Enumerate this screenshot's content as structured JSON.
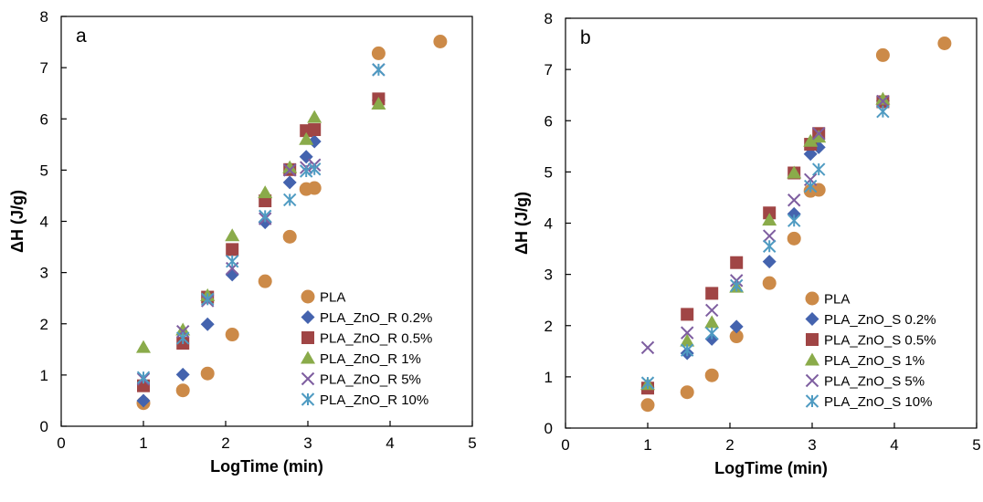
{
  "chart_data": [
    {
      "type": "scatter",
      "panel_label": "a",
      "xlabel": "LogTime (min)",
      "ylabel": "ΔH (J/g)",
      "xlim": [
        0,
        5
      ],
      "ylim": [
        0,
        8
      ],
      "xticks": [
        "0",
        "1",
        "2",
        "3",
        "4",
        "5"
      ],
      "yticks": [
        "0",
        "1",
        "2",
        "3",
        "4",
        "5",
        "6",
        "7",
        "8"
      ],
      "grid": false,
      "legend_position": "bottom-right",
      "series": [
        {
          "name": "PLA",
          "marker": "circle",
          "color": "#CC8A48",
          "points": [
            [
              1.0,
              0.45
            ],
            [
              1.48,
              0.7
            ],
            [
              1.78,
              1.03
            ],
            [
              2.08,
              1.79
            ],
            [
              2.48,
              2.83
            ],
            [
              2.78,
              3.7
            ],
            [
              2.98,
              4.63
            ],
            [
              3.08,
              4.65
            ],
            [
              3.86,
              7.28
            ],
            [
              4.61,
              7.51
            ]
          ]
        },
        {
          "name": "PLA_ZnO_R 0.2%",
          "marker": "diamond",
          "color": "#4463AE",
          "points": [
            [
              1.0,
              0.5
            ],
            [
              1.48,
              1.01
            ],
            [
              1.78,
              1.99
            ],
            [
              2.08,
              2.96
            ],
            [
              2.48,
              3.98
            ],
            [
              2.78,
              4.76
            ],
            [
              2.98,
              5.26
            ],
            [
              3.08,
              5.56
            ],
            [
              3.86,
              6.36
            ]
          ]
        },
        {
          "name": "PLA_ZnO_R 0.5%",
          "marker": "square",
          "color": "#A04545",
          "points": [
            [
              1.0,
              0.79
            ],
            [
              1.48,
              1.62
            ],
            [
              1.78,
              2.52
            ],
            [
              2.08,
              3.45
            ],
            [
              2.48,
              4.4
            ],
            [
              2.78,
              5.01
            ],
            [
              2.98,
              5.77
            ],
            [
              3.08,
              5.79
            ],
            [
              3.86,
              6.39
            ]
          ]
        },
        {
          "name": "PLA_ZnO_R 1%",
          "marker": "triangle",
          "color": "#8AAB4A",
          "points": [
            [
              1.0,
              1.54
            ],
            [
              1.48,
              1.88
            ],
            [
              1.78,
              2.55
            ],
            [
              2.08,
              3.72
            ],
            [
              2.48,
              4.56
            ],
            [
              2.78,
              5.05
            ],
            [
              2.98,
              5.6
            ],
            [
              3.08,
              6.03
            ],
            [
              3.86,
              6.29
            ]
          ]
        },
        {
          "name": "PLA_ZnO_R 5%",
          "marker": "x",
          "color": "#7E5EA0",
          "points": [
            [
              1.0,
              0.92
            ],
            [
              1.48,
              1.85
            ],
            [
              1.78,
              2.45
            ],
            [
              2.08,
              3.08
            ],
            [
              2.48,
              4.05
            ],
            [
              2.78,
              5.0
            ],
            [
              2.98,
              5.05
            ],
            [
              3.08,
              5.1
            ],
            [
              3.86,
              6.96
            ]
          ]
        },
        {
          "name": "PLA_ZnO_R 10%",
          "marker": "asterisk",
          "color": "#4F9BC2",
          "points": [
            [
              1.0,
              0.95
            ],
            [
              1.48,
              1.72
            ],
            [
              1.78,
              2.48
            ],
            [
              2.08,
              3.22
            ],
            [
              2.48,
              4.1
            ],
            [
              2.78,
              4.42
            ],
            [
              2.98,
              4.98
            ],
            [
              3.08,
              5.02
            ],
            [
              3.86,
              6.96
            ]
          ]
        }
      ]
    },
    {
      "type": "scatter",
      "panel_label": "b",
      "xlabel": "LogTime (min)",
      "ylabel": "ΔH (J/g)",
      "xlim": [
        0,
        5
      ],
      "ylim": [
        0,
        8
      ],
      "xticks": [
        "0",
        "1",
        "2",
        "3",
        "4",
        "5"
      ],
      "yticks": [
        "0",
        "1",
        "2",
        "3",
        "4",
        "5",
        "6",
        "7",
        "8"
      ],
      "grid": false,
      "legend_position": "bottom-right",
      "series": [
        {
          "name": "PLA",
          "marker": "circle",
          "color": "#CC8A48",
          "points": [
            [
              1.0,
              0.45
            ],
            [
              1.48,
              0.7
            ],
            [
              1.78,
              1.03
            ],
            [
              2.08,
              1.79
            ],
            [
              2.48,
              2.83
            ],
            [
              2.78,
              3.7
            ],
            [
              2.98,
              4.63
            ],
            [
              3.08,
              4.65
            ],
            [
              3.86,
              7.28
            ],
            [
              4.61,
              7.51
            ]
          ]
        },
        {
          "name": "PLA_ZnO_S 0.2%",
          "marker": "diamond",
          "color": "#4463AE",
          "points": [
            [
              1.0,
              0.8
            ],
            [
              1.48,
              1.46
            ],
            [
              1.78,
              1.74
            ],
            [
              2.08,
              1.98
            ],
            [
              2.48,
              3.25
            ],
            [
              2.78,
              4.18
            ],
            [
              2.98,
              5.35
            ],
            [
              3.08,
              5.48
            ],
            [
              3.86,
              6.39
            ]
          ]
        },
        {
          "name": "PLA_ZnO_S 0.5%",
          "marker": "square",
          "color": "#A04545",
          "points": [
            [
              1.0,
              0.78
            ],
            [
              1.48,
              2.22
            ],
            [
              1.78,
              2.63
            ],
            [
              2.08,
              3.23
            ],
            [
              2.48,
              4.2
            ],
            [
              2.78,
              4.98
            ],
            [
              2.98,
              5.54
            ],
            [
              3.08,
              5.75
            ],
            [
              3.86,
              6.37
            ]
          ]
        },
        {
          "name": "PLA_ZnO_S 1%",
          "marker": "triangle",
          "color": "#8AAB4A",
          "points": [
            [
              1.0,
              0.85
            ],
            [
              1.48,
              1.7
            ],
            [
              1.78,
              2.06
            ],
            [
              2.08,
              2.75
            ],
            [
              2.48,
              4.06
            ],
            [
              2.78,
              4.98
            ],
            [
              2.98,
              5.6
            ],
            [
              3.08,
              5.68
            ],
            [
              3.86,
              6.42
            ]
          ]
        },
        {
          "name": "PLA_ZnO_S 5%",
          "marker": "x",
          "color": "#7E5EA0",
          "points": [
            [
              1.0,
              1.57
            ],
            [
              1.48,
              1.86
            ],
            [
              1.78,
              2.3
            ],
            [
              2.08,
              2.88
            ],
            [
              2.48,
              3.75
            ],
            [
              2.78,
              4.45
            ],
            [
              2.98,
              4.85
            ],
            [
              3.08,
              5.75
            ],
            [
              3.86,
              6.38
            ]
          ]
        },
        {
          "name": "PLA_ZnO_S 10%",
          "marker": "asterisk",
          "color": "#4F9BC2",
          "points": [
            [
              1.0,
              0.88
            ],
            [
              1.48,
              1.52
            ],
            [
              1.78,
              1.85
            ],
            [
              2.08,
              2.78
            ],
            [
              2.48,
              3.55
            ],
            [
              2.78,
              4.05
            ],
            [
              2.98,
              4.72
            ],
            [
              3.08,
              5.05
            ],
            [
              3.86,
              6.18
            ]
          ]
        }
      ]
    }
  ]
}
